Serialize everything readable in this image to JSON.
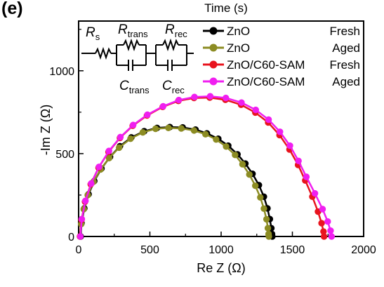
{
  "panel_label": "(e)",
  "top_axis_label": "Time (s)",
  "circuit": {
    "labels": [
      {
        "main": "R",
        "sub": "s"
      },
      {
        "main": "R",
        "sub": "trans"
      },
      {
        "main": "R",
        "sub": "rec"
      },
      {
        "main": "C",
        "sub": "trans"
      },
      {
        "main": "C",
        "sub": "rec"
      }
    ]
  },
  "colors": {
    "zno_fresh": "#000000",
    "zno_aged": "#8c8c23",
    "c60_fresh": "#e8141e",
    "c60_aged": "#f01ef0"
  },
  "chart_data": {
    "type": "scatter",
    "title": "",
    "xlabel": "Re Z (Ω)",
    "ylabel": "-Im Z (Ω)",
    "xlim": [
      0,
      2000
    ],
    "ylim": [
      0,
      1300
    ],
    "x_ticks": [
      0,
      500,
      1000,
      1500,
      2000
    ],
    "y_ticks": [
      0,
      500,
      1000
    ],
    "legend_position": "top-right",
    "series": [
      {
        "name": "ZnO Fresh",
        "legend_label": "ZnO",
        "legend_state": "Fresh",
        "color": "#000000",
        "points": [
          [
            15,
            0
          ],
          [
            20,
            80
          ],
          [
            40,
            170
          ],
          [
            70,
            255
          ],
          [
            110,
            335
          ],
          [
            160,
            410
          ],
          [
            220,
            480
          ],
          [
            290,
            545
          ],
          [
            370,
            598
          ],
          [
            460,
            635
          ],
          [
            550,
            655
          ],
          [
            640,
            660
          ],
          [
            730,
            658
          ],
          [
            820,
            645
          ],
          [
            900,
            622
          ],
          [
            980,
            590
          ],
          [
            1050,
            548
          ],
          [
            1115,
            496
          ],
          [
            1170,
            440
          ],
          [
            1220,
            378
          ],
          [
            1265,
            310
          ],
          [
            1300,
            240
          ],
          [
            1325,
            170
          ],
          [
            1342,
            105
          ],
          [
            1352,
            50
          ],
          [
            1357,
            15
          ],
          [
            1359,
            0
          ]
        ]
      },
      {
        "name": "ZnO Aged",
        "legend_label": "ZnO",
        "legend_state": "Aged",
        "color": "#8c8c23",
        "points": [
          [
            10,
            0
          ],
          [
            18,
            75
          ],
          [
            36,
            165
          ],
          [
            64,
            250
          ],
          [
            104,
            330
          ],
          [
            154,
            405
          ],
          [
            214,
            473
          ],
          [
            284,
            536
          ],
          [
            364,
            590
          ],
          [
            450,
            628
          ],
          [
            540,
            650
          ],
          [
            630,
            655
          ],
          [
            720,
            652
          ],
          [
            810,
            640
          ],
          [
            890,
            617
          ],
          [
            965,
            585
          ],
          [
            1035,
            543
          ],
          [
            1098,
            492
          ],
          [
            1150,
            436
          ],
          [
            1198,
            374
          ],
          [
            1240,
            306
          ],
          [
            1275,
            236
          ],
          [
            1300,
            168
          ],
          [
            1318,
            104
          ],
          [
            1328,
            50
          ],
          [
            1333,
            15
          ],
          [
            1335,
            0
          ]
        ]
      },
      {
        "name": "ZnO/C60-SAM Fresh",
        "legend_label": "ZnO/C60-SAM",
        "legend_state": "Fresh",
        "color": "#e8141e",
        "points": [
          [
            10,
            0
          ],
          [
            20,
            100
          ],
          [
            45,
            210
          ],
          [
            85,
            315
          ],
          [
            140,
            415
          ],
          [
            210,
            510
          ],
          [
            290,
            595
          ],
          [
            380,
            668
          ],
          [
            480,
            730
          ],
          [
            590,
            782
          ],
          [
            700,
            818
          ],
          [
            810,
            836
          ],
          [
            920,
            838
          ],
          [
            1030,
            825
          ],
          [
            1140,
            795
          ],
          [
            1240,
            748
          ],
          [
            1330,
            688
          ],
          [
            1410,
            612
          ],
          [
            1480,
            525
          ],
          [
            1540,
            432
          ],
          [
            1590,
            338
          ],
          [
            1640,
            240
          ],
          [
            1680,
            150
          ],
          [
            1705,
            80
          ],
          [
            1718,
            30
          ],
          [
            1722,
            0
          ]
        ]
      },
      {
        "name": "ZnO/C60-SAM Aged",
        "legend_label": "ZnO/C60-SAM",
        "legend_state": "Aged",
        "color": "#f01ef0",
        "points": [
          [
            12,
            0
          ],
          [
            22,
            105
          ],
          [
            48,
            215
          ],
          [
            88,
            320
          ],
          [
            143,
            420
          ],
          [
            213,
            516
          ],
          [
            293,
            600
          ],
          [
            383,
            673
          ],
          [
            483,
            735
          ],
          [
            593,
            786
          ],
          [
            703,
            823
          ],
          [
            813,
            842
          ],
          [
            923,
            846
          ],
          [
            1033,
            836
          ],
          [
            1143,
            808
          ],
          [
            1243,
            764
          ],
          [
            1333,
            705
          ],
          [
            1413,
            632
          ],
          [
            1483,
            548
          ],
          [
            1543,
            456
          ],
          [
            1598,
            360
          ],
          [
            1658,
            260
          ],
          [
            1712,
            165
          ],
          [
            1748,
            90
          ],
          [
            1768,
            35
          ],
          [
            1775,
            0
          ]
        ]
      }
    ]
  }
}
